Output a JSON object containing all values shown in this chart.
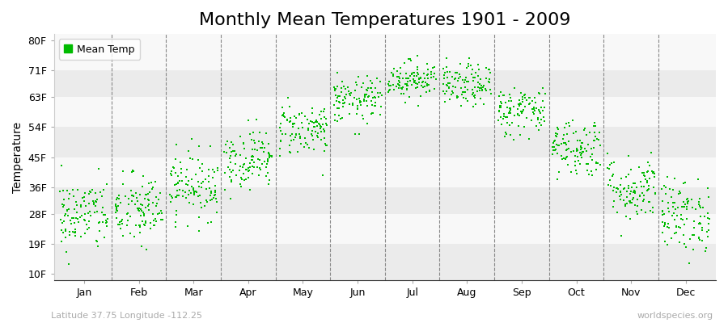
{
  "title": "Monthly Mean Temperatures 1901 - 2009",
  "ylabel": "Temperature",
  "background_color": "#ffffff",
  "plot_bg_color": "#ffffff",
  "dot_color": "#00bb00",
  "dot_size": 3,
  "legend_label": "Mean Temp",
  "yticks": [
    10,
    19,
    28,
    36,
    45,
    54,
    63,
    71,
    80
  ],
  "ytick_labels": [
    "10F",
    "19F",
    "28F",
    "36F",
    "45F",
    "54F",
    "63F",
    "71F",
    "80F"
  ],
  "ylim": [
    8,
    82
  ],
  "months": [
    "Jan",
    "Feb",
    "Mar",
    "Apr",
    "May",
    "Jun",
    "Jul",
    "Aug",
    "Sep",
    "Oct",
    "Nov",
    "Dec"
  ],
  "monthly_means": [
    27.5,
    29.0,
    36.5,
    44.5,
    53.5,
    62.0,
    68.5,
    66.5,
    59.0,
    48.0,
    35.5,
    27.5
  ],
  "monthly_stds": [
    5.5,
    5.5,
    5.0,
    4.5,
    4.0,
    3.5,
    2.8,
    3.2,
    3.8,
    4.5,
    5.0,
    5.5
  ],
  "n_years": 109,
  "footer_left": "Latitude 37.75 Longitude -112.25",
  "footer_right": "worldspecies.org",
  "title_fontsize": 16,
  "axis_label_fontsize": 10,
  "tick_fontsize": 9,
  "footer_fontsize": 8,
  "stripe_colors": [
    "#ebebeb",
    "#f8f8f8"
  ],
  "band_boundaries": [
    10,
    19,
    28,
    36,
    45,
    54,
    63,
    71,
    80
  ]
}
